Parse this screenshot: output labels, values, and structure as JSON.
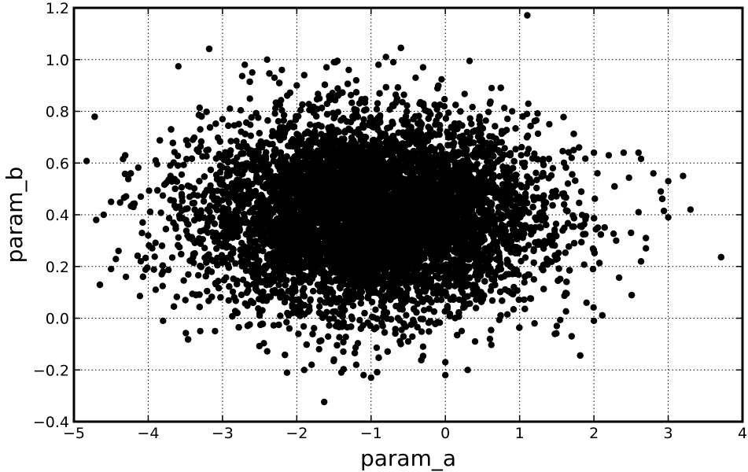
{
  "chart_data": {
    "type": "scatter",
    "title": "",
    "xlabel": "param_a",
    "ylabel": "param_b",
    "xlim": [
      -5,
      4
    ],
    "ylim": [
      -0.4,
      1.2
    ],
    "xticks": [
      -5,
      -4,
      -3,
      -2,
      -1,
      0,
      1,
      2,
      3,
      4
    ],
    "yticks": [
      -0.4,
      -0.2,
      0.0,
      0.2,
      0.4,
      0.6,
      0.8,
      1.0,
      1.2
    ],
    "xtick_labels": [
      "−5",
      "−4",
      "−3",
      "−2",
      "−1",
      "0",
      "1",
      "2",
      "3",
      "4"
    ],
    "ytick_labels": [
      "−0.4",
      "−0.2",
      "0.0",
      "0.2",
      "0.4",
      "0.6",
      "0.8",
      "1.0",
      "1.2"
    ],
    "grid": true,
    "grid_style": "dotted",
    "marker_color": "#000000",
    "distribution_summary": {
      "x_mean": -1.0,
      "x_std": 1.1,
      "y_mean": 0.4,
      "y_std": 0.18,
      "n_points": 10000
    },
    "series": [
      {
        "values": [
          [
            -4.7,
            0.38
          ],
          [
            -4.6,
            0.4
          ],
          [
            -4.5,
            0.19
          ],
          [
            -4.5,
            0.45
          ],
          [
            -4.4,
            0.26
          ],
          [
            -4.3,
            0.16
          ],
          [
            -4.2,
            0.43
          ],
          [
            -4.1,
            0.22
          ],
          [
            -4.1,
            0.47
          ],
          [
            -4.0,
            0.32
          ],
          [
            -3.9,
            0.61
          ],
          [
            -3.9,
            0.11
          ],
          [
            -3.8,
            0.18
          ],
          [
            -3.8,
            -0.01
          ],
          [
            -3.7,
            0.55
          ],
          [
            -3.6,
            0.59
          ],
          [
            -3.5,
            0.07
          ],
          [
            -3.4,
            0.69
          ],
          [
            -3.3,
            0.73
          ],
          [
            -3.3,
            -0.05
          ],
          [
            -3.1,
            -0.05
          ],
          [
            -3.0,
            0.77
          ],
          [
            -2.9,
            0.81
          ],
          [
            -2.8,
            0.02
          ],
          [
            -2.7,
            0.98
          ],
          [
            -2.6,
            0.95
          ],
          [
            -2.5,
            0.01
          ],
          [
            -2.4,
            1.0
          ],
          [
            -2.3,
            0.93
          ],
          [
            -2.2,
            0.96
          ],
          [
            -2.1,
            -0.04
          ],
          [
            -2.0,
            0.9
          ],
          [
            -1.9,
            0.94
          ],
          [
            -1.9,
            -0.2
          ],
          [
            -1.8,
            -0.18
          ],
          [
            -1.7,
            -0.12
          ],
          [
            -1.6,
            0.97
          ],
          [
            -1.5,
            0.99
          ],
          [
            -1.5,
            -0.16
          ],
          [
            -1.4,
            -0.21
          ],
          [
            -1.3,
            0.96
          ],
          [
            -1.2,
            0.92
          ],
          [
            -1.2,
            -0.18
          ],
          [
            -1.1,
            -0.22
          ],
          [
            -1.0,
            -0.23
          ],
          [
            -0.9,
            0.98
          ],
          [
            -0.8,
            1.01
          ],
          [
            -0.7,
            0.99
          ],
          [
            -0.6,
            -0.1
          ],
          [
            -0.5,
            -0.09
          ],
          [
            -0.4,
            0.93
          ],
          [
            -0.3,
            0.97
          ],
          [
            -0.3,
            -0.11
          ],
          [
            0.0,
            -0.17
          ],
          [
            0.0,
            -0.22
          ],
          [
            0.3,
            -0.2
          ],
          [
            0.4,
            -0.09
          ],
          [
            0.6,
            0.83
          ],
          [
            0.6,
            -0.08
          ],
          [
            0.9,
            0.8
          ],
          [
            1.1,
            0.79
          ],
          [
            1.2,
            -0.02
          ],
          [
            1.4,
            0.75
          ],
          [
            1.5,
            -0.03
          ],
          [
            1.7,
            0.62
          ],
          [
            1.7,
            -0.07
          ],
          [
            1.8,
            0.66
          ],
          [
            1.9,
            0.06
          ],
          [
            2.0,
            0.64
          ],
          [
            2.0,
            -0.01
          ],
          [
            2.2,
            0.63
          ],
          [
            2.3,
            0.3
          ],
          [
            2.4,
            0.64
          ],
          [
            2.5,
            0.33
          ],
          [
            2.6,
            0.41
          ],
          [
            2.6,
            0.64
          ],
          [
            2.7,
            0.31
          ],
          [
            2.7,
            0.27
          ],
          [
            2.8,
            0.56
          ],
          [
            2.9,
            0.49
          ],
          [
            3.0,
            0.39
          ],
          [
            3.0,
            0.53
          ],
          [
            3.2,
            0.55
          ],
          [
            3.3,
            0.42
          ]
        ]
      }
    ]
  }
}
